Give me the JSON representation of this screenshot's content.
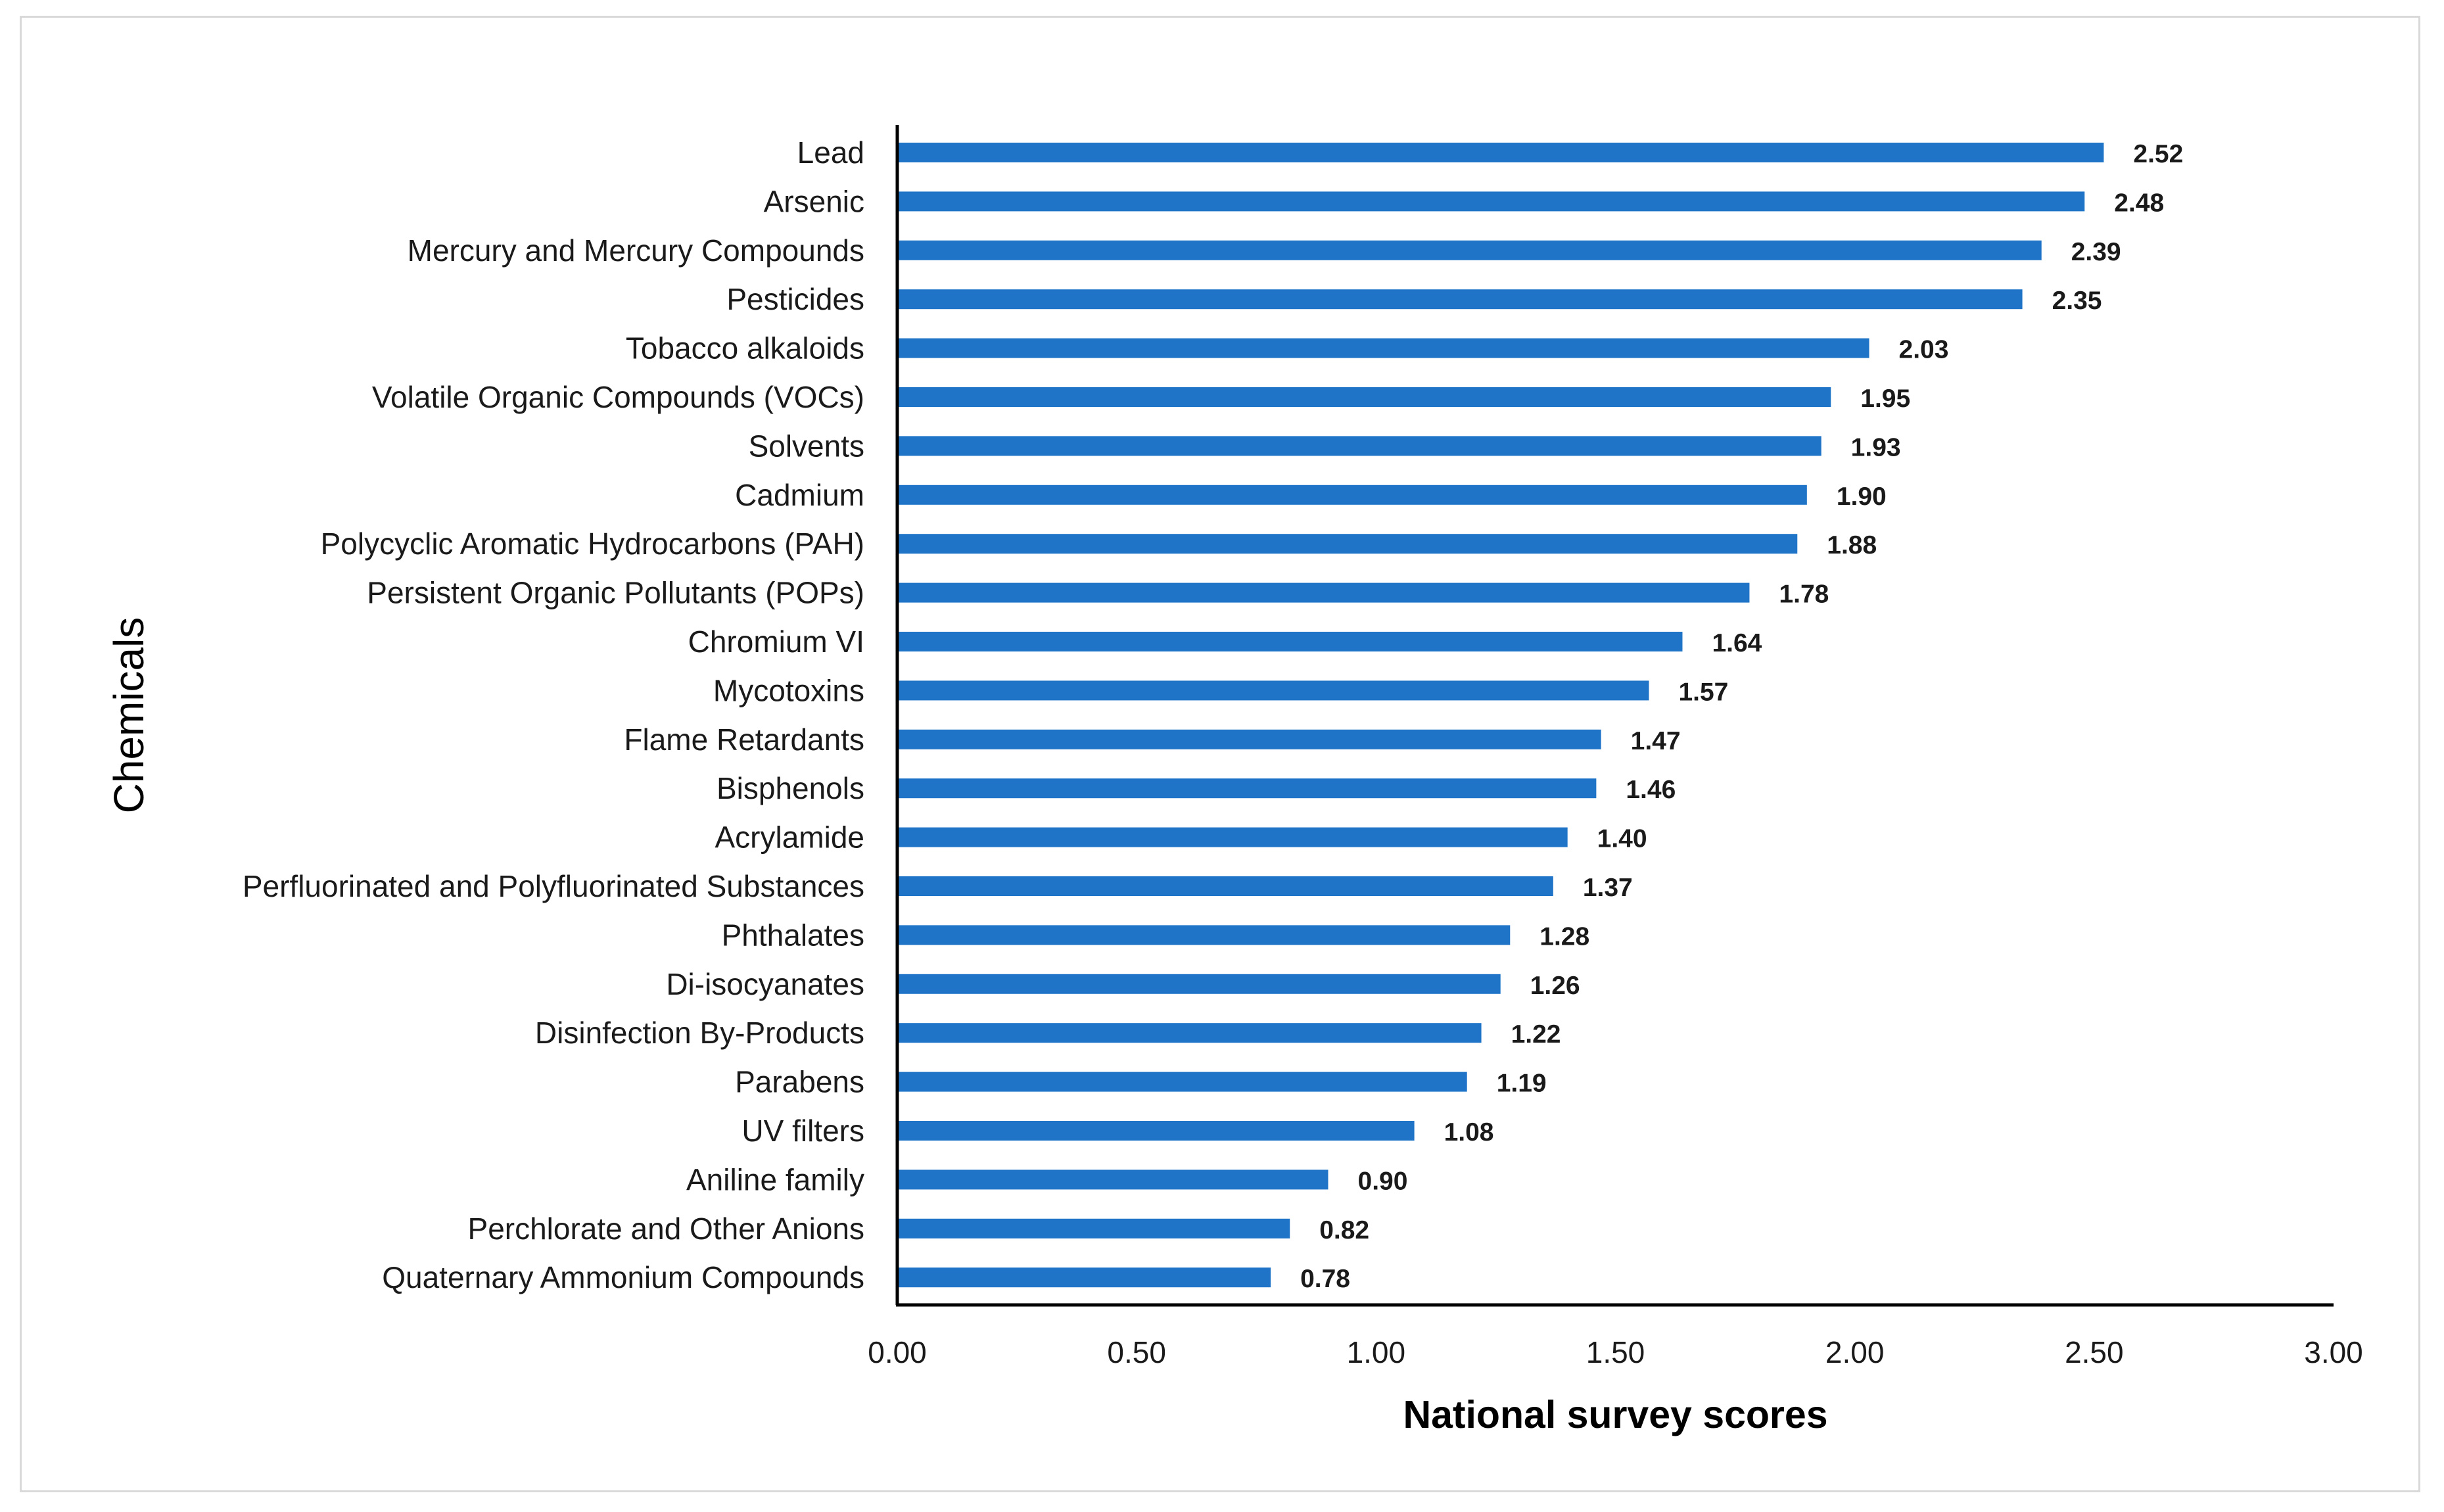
{
  "chart_data": {
    "type": "bar",
    "orientation": "horizontal",
    "title": "",
    "xlabel": "National survey scores",
    "ylabel": "Chemicals",
    "xlim": [
      0,
      3
    ],
    "xticks": [
      0,
      0.5,
      1,
      1.5,
      2,
      2.5,
      3
    ],
    "xtick_labels": [
      "0.00",
      "0.50",
      "1.00",
      "1.50",
      "2.00",
      "2.50",
      "3.00"
    ],
    "grid": false,
    "legend": "none",
    "bar_color": "#1f74c8",
    "categories": [
      "Lead",
      "Arsenic",
      "Mercury and Mercury Compounds",
      "Pesticides",
      "Tobacco alkaloids",
      "Volatile Organic Compounds (VOCs)",
      "Solvents",
      "Cadmium",
      "Polycyclic Aromatic Hydrocarbons (PAH)",
      "Persistent Organic Pollutants (POPs)",
      "Chromium VI",
      "Mycotoxins",
      "Flame Retardants",
      "Bisphenols",
      "Acrylamide",
      "Perfluorinated and Polyfluorinated Substances",
      "Phthalates",
      "Di-isocyanates",
      "Disinfection By-Products",
      "Parabens",
      "UV filters",
      "Aniline family",
      "Perchlorate and Other Anions",
      "Quaternary Ammonium Compounds"
    ],
    "values": [
      2.52,
      2.48,
      2.39,
      2.35,
      2.03,
      1.95,
      1.93,
      1.9,
      1.88,
      1.78,
      1.64,
      1.57,
      1.47,
      1.46,
      1.4,
      1.37,
      1.28,
      1.26,
      1.22,
      1.19,
      1.08,
      0.9,
      0.82,
      0.78
    ],
    "value_labels": [
      "2.52",
      "2.48",
      "2.39",
      "2.35",
      "2.03",
      "1.95",
      "1.93",
      "1.90",
      "1.88",
      "1.78",
      "1.64",
      "1.57",
      "1.47",
      "1.46",
      "1.40",
      "1.37",
      "1.28",
      "1.26",
      "1.22",
      "1.19",
      "1.08",
      "0.90",
      "0.82",
      "0.78"
    ]
  }
}
